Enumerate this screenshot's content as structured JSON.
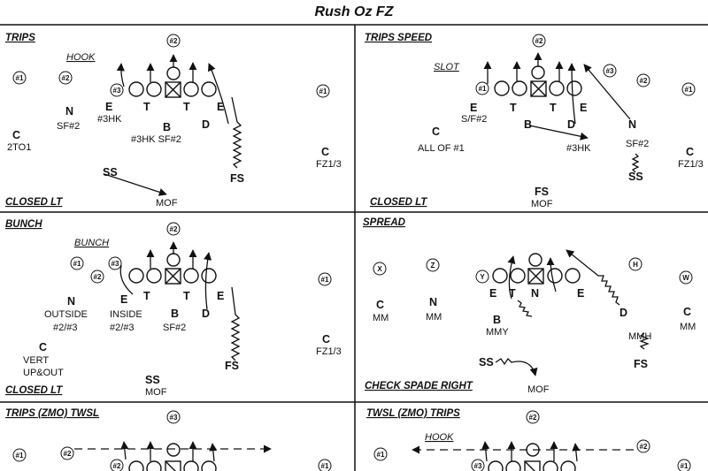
{
  "title": "Rush Oz FZ",
  "panels": {
    "trips": {
      "name": "TRIPS",
      "callout": "HOOK",
      "coverage": "CLOSED LT",
      "route_labels": [
        "E",
        "T",
        "T",
        "E",
        "D",
        "B"
      ],
      "defenders": {
        "n_letter": "N",
        "n_label": "SF#2",
        "e_label": "#3HK",
        "b_label": "#3HK SF#2",
        "c_left_letter": "C",
        "c_left_label": "2TO1",
        "c_right_letter": "C",
        "c_right_label": "FZ1/3",
        "ss_letter": "SS",
        "ss_label": "MOF",
        "fs_letter": "FS"
      },
      "markers": [
        "#1",
        "#2",
        "#2",
        "#1",
        "#3"
      ]
    },
    "trips_speed": {
      "name": "TRIPS SPEED",
      "callout": "SLOT",
      "coverage": "CLOSED LT",
      "route_labels": [
        "E",
        "T",
        "T",
        "E",
        "D",
        "B",
        "N"
      ],
      "defenders": {
        "e_label": "S/F#2",
        "c_left_letter": "C",
        "c_left_label": "ALL OF #1",
        "b_label": "#3HK",
        "n_label": "SF#2",
        "c_right_letter": "C",
        "c_right_label": "FZ1/3",
        "ss_letter": "SS",
        "fs_letter": "FS",
        "fs_label": "MOF"
      },
      "markers": [
        "#2",
        "#3",
        "#1",
        "#2",
        "#1"
      ]
    },
    "bunch": {
      "name": "BUNCH",
      "callout": "BUNCH",
      "coverage": "CLOSED LT",
      "route_labels": [
        "E",
        "T",
        "T",
        "E",
        "D",
        "B",
        "N"
      ],
      "defenders": {
        "n_label": "OUTSIDE",
        "n_sub": "#2/#3",
        "e_label": "INSIDE",
        "e_sub": "#2/#3",
        "b_label": "SF#2",
        "c_left_letter": "C",
        "c_left_label": "VERT",
        "c_left_sub": "UP&OUT",
        "c_right_letter": "C",
        "c_right_label": "FZ1/3",
        "ss_letter": "SS",
        "ss_label": "MOF",
        "fs_letter": "FS"
      },
      "markers": [
        "#2",
        "#1",
        "#2",
        "#3",
        "#1"
      ]
    },
    "spread": {
      "name": "SPREAD",
      "coverage": "CHECK SPADE RIGHT",
      "route_labels": [
        "E",
        "T",
        "N",
        "E",
        "D",
        "B"
      ],
      "defenders": {
        "c_left_letter": "C",
        "c_left_label": "MM",
        "n_label": "MM",
        "b_label": "MMY",
        "c_right_letter": "C",
        "c_right_label": "MM",
        "mmh_label": "MMH",
        "fs_letter": "FS",
        "ss_letter": "SS",
        "ss_label": "MOF"
      },
      "markers": [
        "X",
        "Z",
        "Y",
        "H",
        "W"
      ]
    },
    "trips_zmo_twsl": {
      "name": "TRIPS (ZMO) TWSL",
      "markers": [
        "#3",
        "#1",
        "#2",
        "#2",
        "#1"
      ]
    },
    "twsl_zmo_trips": {
      "name": "TWSL (ZMO) TRIPS",
      "callout": "HOOK",
      "markers": [
        "#2",
        "#1",
        "#2",
        "#3",
        "#1"
      ]
    }
  }
}
